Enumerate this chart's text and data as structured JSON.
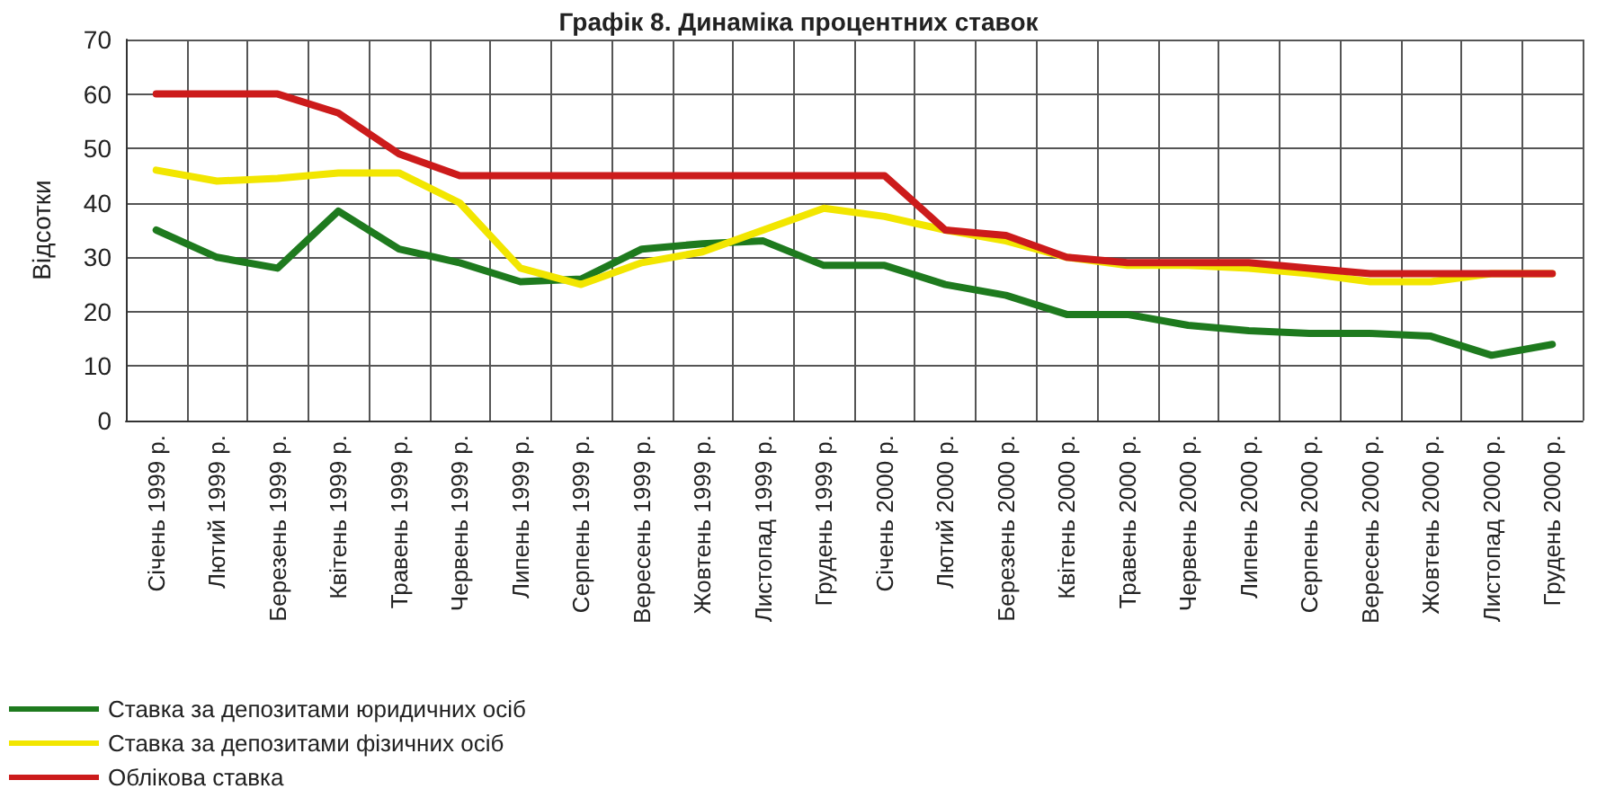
{
  "chart_data": {
    "type": "line",
    "title": "Графік 8. Динаміка процентних ставок",
    "ylabel": "Відсотки",
    "categories": [
      "Січень 1999 р.",
      "Лютий 1999 р.",
      "Березень 1999 р.",
      "Квітень 1999 р.",
      "Травень 1999 р.",
      "Червень 1999 р.",
      "Липень 1999 р.",
      "Серпень 1999 р.",
      "Вересень 1999 р.",
      "Жовтень 1999 р.",
      "Листопад 1999 р.",
      "Грудень 1999 р.",
      "Січень 2000 р.",
      "Лютий 2000 р.",
      "Березень 2000 р.",
      "Квітень 2000 р.",
      "Травень 2000 р.",
      "Червень 2000 р.",
      "Липень 2000 р.",
      "Серпень 2000 р.",
      "Вересень 2000 р.",
      "Жовтень 2000 р.",
      "Листопад 2000 р.",
      "Грудень 2000 р."
    ],
    "series": [
      {
        "name": "Ставка за депозитами юридичних осіб",
        "color": "#1e7a1e",
        "values": [
          35,
          30,
          28,
          38.5,
          31.5,
          29,
          25.5,
          26,
          31.5,
          32.5,
          33,
          28.5,
          28.5,
          25,
          23,
          19.5,
          19.5,
          17.5,
          16.5,
          16,
          16,
          15.5,
          12,
          14
        ]
      },
      {
        "name": "Ставка за депозитами фізичних осіб",
        "color": "#f2e600",
        "values": [
          46,
          44,
          44.5,
          45.5,
          45.5,
          40,
          28,
          25,
          29,
          31,
          35,
          39,
          37.5,
          35,
          33,
          30,
          28.5,
          28.5,
          28,
          27,
          25.5,
          25.5,
          27,
          27
        ]
      },
      {
        "name": "Облікова ставка",
        "color": "#cc1b1b",
        "values": [
          60,
          60,
          60,
          56.5,
          49,
          45,
          45,
          45,
          45,
          45,
          45,
          45,
          45,
          35,
          34,
          30,
          29,
          29,
          29,
          28,
          27,
          27,
          27,
          27
        ]
      }
    ],
    "ylim": [
      0,
      70
    ],
    "yticks": [
      0,
      10,
      20,
      30,
      40,
      50,
      60,
      70
    ],
    "grid": true,
    "legend": "bottom left",
    "marker": "none",
    "line_style": "solid"
  }
}
